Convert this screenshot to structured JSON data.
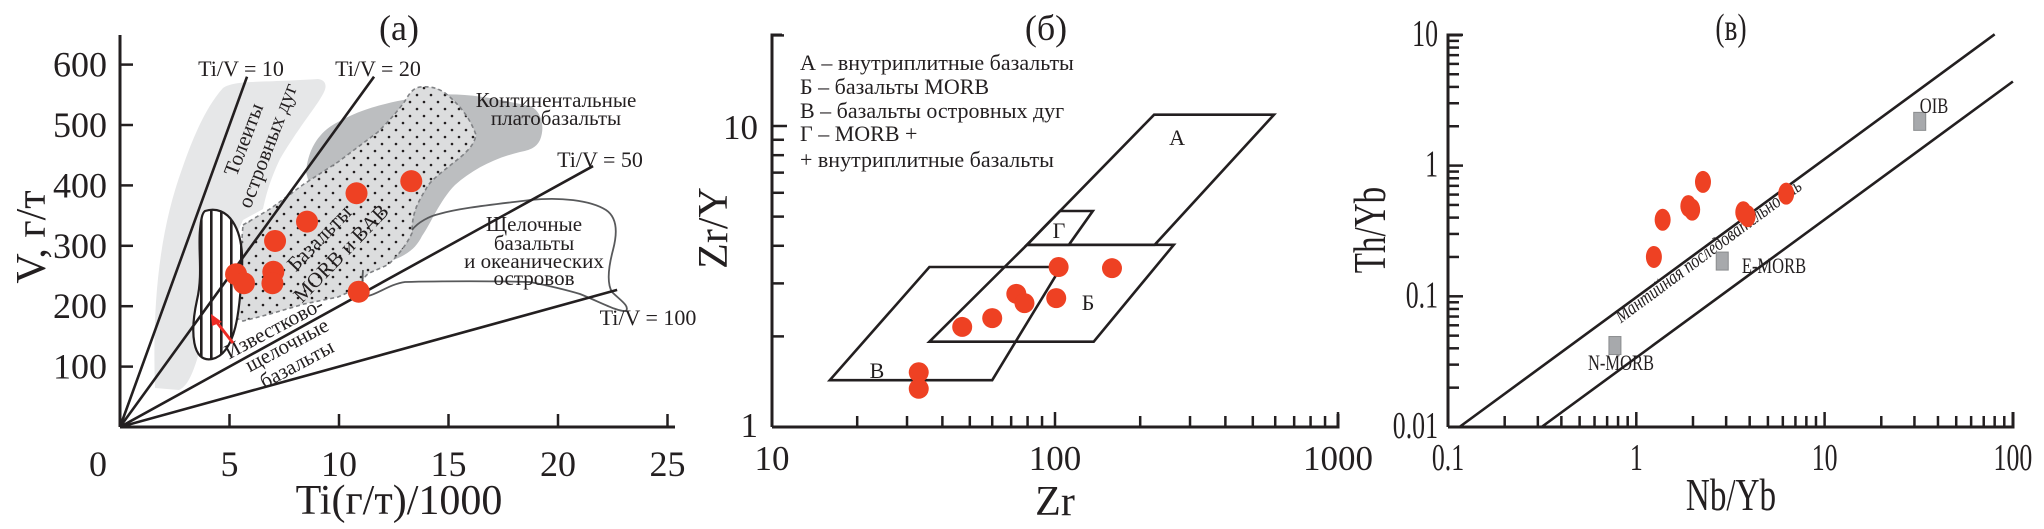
{
  "chart_data": [
    {
      "type": "scatter",
      "title": "(a)",
      "xlabel": "Ti(г/т)/1000",
      "ylabel": "V, г/т",
      "xlim": [
        0,
        25
      ],
      "ylim": [
        0,
        650
      ],
      "xscale": "linear",
      "yscale": "linear",
      "xticks": [
        0,
        5,
        10,
        15,
        20,
        25
      ],
      "yticks": [
        100,
        200,
        300,
        400,
        500,
        600
      ],
      "point_color": "#ee4123",
      "points": [
        [
          5.3,
          253
        ],
        [
          5.66,
          238
        ],
        [
          7.0,
          257
        ],
        [
          6.96,
          238
        ],
        [
          7.08,
          308
        ],
        [
          8.54,
          340
        ],
        [
          10.8,
          387
        ],
        [
          13.3,
          407
        ],
        [
          10.9,
          224
        ]
      ],
      "ratio_lines": [
        {
          "label": "Ti/V = 10",
          "ratio": 10,
          "x_end": 5.8
        },
        {
          "label": "Ti/V = 20",
          "ratio": 20,
          "x_end": 11.6
        },
        {
          "label": "Ti/V = 50",
          "ratio": 50,
          "x_end": 21.6
        },
        {
          "label": "Ti/V = 100",
          "ratio": 100,
          "x_end": 22.7
        }
      ],
      "fields": [
        {
          "lines": [
            "Толеиты",
            "островных дуг"
          ],
          "fill": "#e6e7e8"
        },
        {
          "lines": [
            "Континентальные",
            "платобазальты"
          ],
          "fill": "#bcbec0"
        },
        {
          "lines": [
            "Базальты",
            "MORB и BAB"
          ],
          "fill": "#dcddde"
        },
        {
          "lines": [
            "Щелочные",
            "базальты",
            "и океанических",
            "островов"
          ],
          "fill": "none"
        },
        {
          "lines": [
            "Известково-",
            "щелочные",
            "базальты"
          ],
          "fill": "none"
        }
      ],
      "arrow_color": "#ee2a24"
    },
    {
      "type": "scatter",
      "title": "(б)",
      "xlabel": "Zr",
      "ylabel": "Zr/Y",
      "xlim": [
        10,
        1000
      ],
      "ylim": [
        1,
        20
      ],
      "xscale": "log",
      "yscale": "log",
      "xticks": [
        10,
        100,
        1000
      ],
      "yticks": [
        1,
        10
      ],
      "point_color": "#ee4123",
      "points": [
        [
          33,
          1.52
        ],
        [
          33,
          1.34
        ],
        [
          47,
          2.15
        ],
        [
          60,
          2.3
        ],
        [
          73,
          2.77
        ],
        [
          78,
          2.58
        ],
        [
          103,
          3.4
        ],
        [
          101,
          2.68
        ],
        [
          159,
          3.37
        ]
      ],
      "legend": [
        "А – внутриплитные базальты",
        "Б – базальты MORB",
        "В – базальты островных дуг",
        "Г – MORB +",
        "+ внутриплитные базальты"
      ],
      "fields": [
        {
          "label": "А",
          "polygon": [
            [
              79.6,
              4.03
            ],
            [
              224,
              10.9
            ],
            [
              594,
              10.9
            ],
            [
              225,
              4.03
            ]
          ]
        },
        {
          "label": "Б",
          "polygon": [
            [
              36,
              1.92
            ],
            [
              137,
              1.92
            ],
            [
              263,
              4.03
            ],
            [
              79.6,
              4.03
            ]
          ]
        },
        {
          "label": "В",
          "polygon": [
            [
              16,
              1.43
            ],
            [
              60,
              1.43
            ],
            [
              105,
              3.4
            ],
            [
              36,
              3.4
            ]
          ]
        },
        {
          "label": "Г",
          "polygon": [
            [
              79.6,
              4.03
            ],
            [
              104,
              5.22
            ],
            [
              136,
              5.22
            ],
            [
              112,
              4.03
            ]
          ]
        }
      ]
    },
    {
      "type": "scatter",
      "title": "(в)",
      "xlabel": "Nb/Yb",
      "ylabel": "Th/Yb",
      "xlim": [
        0.1,
        100
      ],
      "ylim": [
        0.01,
        10
      ],
      "xscale": "log",
      "yscale": "log",
      "xticks": [
        0.1,
        1,
        10,
        100
      ],
      "yticks": [
        0.01,
        0.1,
        1,
        10
      ],
      "point_color": "#ee4123",
      "points": [
        [
          1.24,
          0.2
        ],
        [
          1.38,
          0.385
        ],
        [
          1.89,
          0.49
        ],
        [
          1.98,
          0.46
        ],
        [
          2.26,
          0.75
        ],
        [
          3.7,
          0.44
        ],
        [
          3.9,
          0.41
        ],
        [
          6.25,
          0.61
        ]
      ],
      "reference_color": "#a7a9ac",
      "references": [
        {
          "label": "N-MORB",
          "x": 0.77,
          "y": 0.042
        },
        {
          "label": "E-MORB",
          "x": 2.86,
          "y": 0.186
        },
        {
          "label": "OIB",
          "x": 32,
          "y": 2.18
        }
      ],
      "array_lines": [
        [
          [
            0.115,
            0.01
          ],
          [
            80,
            10.1
          ]
        ],
        [
          [
            0.314,
            0.01
          ],
          [
            100,
            4.4
          ]
        ]
      ],
      "array_label": "Мантийная последовательность"
    }
  ]
}
